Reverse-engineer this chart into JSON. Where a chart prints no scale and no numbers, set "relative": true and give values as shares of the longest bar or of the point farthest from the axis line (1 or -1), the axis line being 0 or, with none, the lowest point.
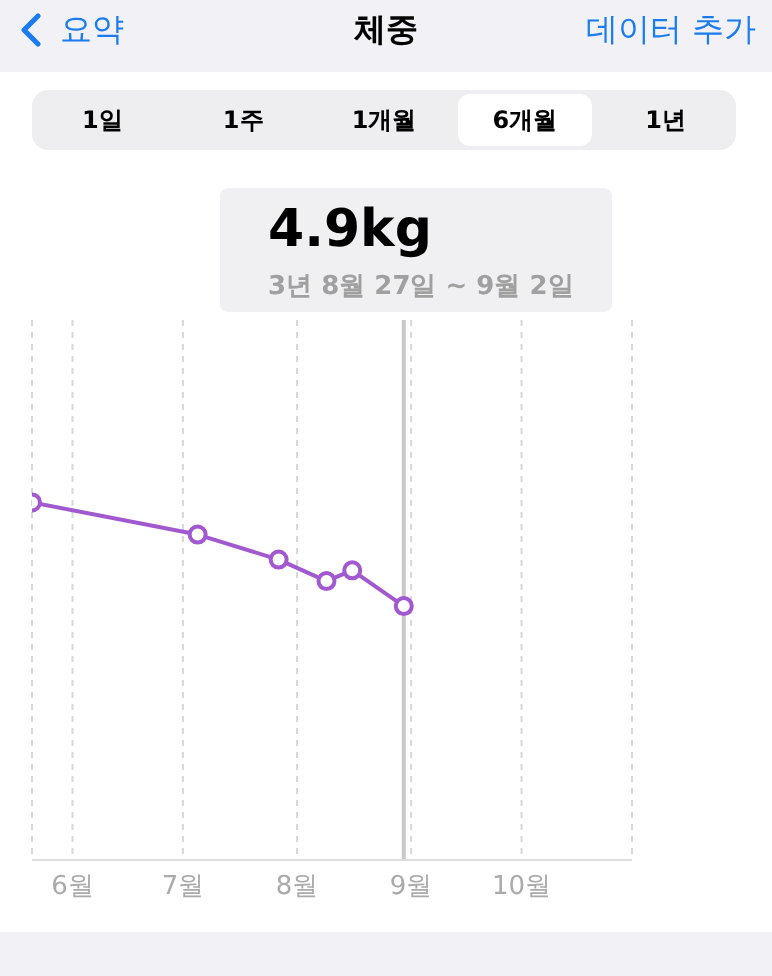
{
  "chart_data": {
    "type": "line",
    "title": "체중",
    "annotations": [
      "요약",
      "데이터 추가",
      "1일",
      "1주",
      "1개월",
      "6개월",
      "1년",
      "4.9kg",
      "3년 8월 27일 ~ 9월 2일"
    ],
    "x": [
      "--05-21",
      "--07-05",
      "--07-27",
      "--08-09",
      "--08-16",
      "--08-30"
    ],
    "series": [
      {
        "color": "#a259d0",
        "values": [
          1,
          0.91,
          0.84,
          0.78,
          0.81,
          0.71
        ]
      }
    ],
    "relative": true,
    "xlim": [
      "--05-21",
      "--10-31"
    ],
    "xticks": [
      {
        "value": "--06-01",
        "label": "6월"
      },
      {
        "value": "--07-01",
        "label": "7월"
      },
      {
        "value": "--08-01",
        "label": "8월"
      },
      {
        "value": "--09-01",
        "label": "9월"
      },
      {
        "value": "--10-01",
        "label": "10월"
      }
    ],
    "ref_lines": [
      {
        "axis": "x",
        "value": "--08-30",
        "color": "#c8c8c8"
      }
    ],
    "grid": "x",
    "marker": "circle",
    "line_style": "solid"
  }
}
